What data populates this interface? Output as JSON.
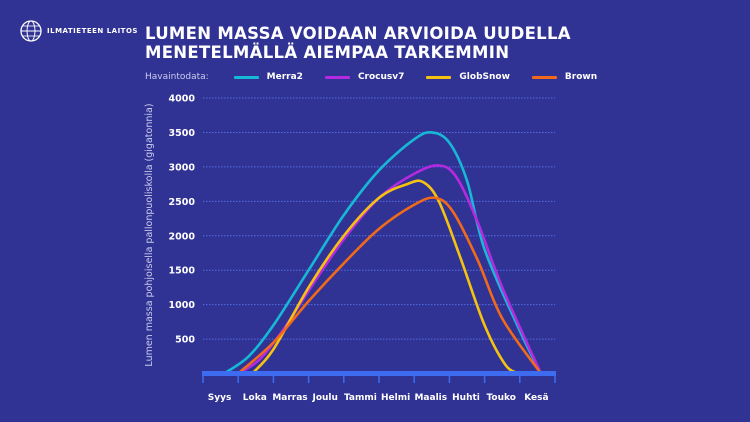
{
  "logo": {
    "text": "ILMATIETEEN LAITOS"
  },
  "title": "LUMEN MASSA VOIDAAN ARVIOIDA UUDELLA MENETELMÄLLÄ AIEMPAA TARKEMMIN",
  "chart_data": {
    "type": "line",
    "title": "LUMEN MASSA VOIDAAN ARVIOIDA UUDELLA MENETELMÄLLÄ AIEMPAA TARKEMMIN",
    "legend_title": "Havaintodata:",
    "legend_placement": "top",
    "xlabel": "",
    "ylabel": "Lumen massa pohjoisella pallonpuoliskolla (gigatonnia)",
    "categories": [
      "Syys",
      "Loka",
      "Marras",
      "Joulu",
      "Tammi",
      "Helmi",
      "Maalis",
      "Huhti",
      "Touko",
      "Kesä"
    ],
    "ylim": [
      0,
      4000
    ],
    "yticks": [
      500,
      1000,
      1500,
      2000,
      2500,
      3000,
      3500,
      4000
    ],
    "grid": true,
    "x_units": "months since start of September",
    "series": [
      {
        "name": "Merra2",
        "color": "#17b8d6",
        "points": [
          [
            0.6,
            0
          ],
          [
            1.3,
            250
          ],
          [
            2.0,
            700
          ],
          [
            3.0,
            1500
          ],
          [
            4.0,
            2300
          ],
          [
            5.0,
            2950
          ],
          [
            6.0,
            3400
          ],
          [
            6.5,
            3500
          ],
          [
            7.0,
            3350
          ],
          [
            7.5,
            2800
          ],
          [
            8.0,
            1800
          ],
          [
            9.0,
            620
          ],
          [
            9.6,
            0
          ]
        ]
      },
      {
        "name": "Crocusv7",
        "color": "#b52ae0",
        "points": [
          [
            1.0,
            0
          ],
          [
            1.6,
            200
          ],
          [
            2.3,
            650
          ],
          [
            3.0,
            1200
          ],
          [
            4.0,
            1950
          ],
          [
            5.0,
            2550
          ],
          [
            6.0,
            2900
          ],
          [
            6.7,
            3020
          ],
          [
            7.2,
            2850
          ],
          [
            7.8,
            2200
          ],
          [
            8.5,
            1250
          ],
          [
            9.6,
            0
          ]
        ]
      },
      {
        "name": "GlobSnow",
        "color": "#f5c211",
        "points": [
          [
            1.4,
            0
          ],
          [
            2.0,
            350
          ],
          [
            3.0,
            1250
          ],
          [
            4.0,
            2000
          ],
          [
            5.0,
            2550
          ],
          [
            5.8,
            2750
          ],
          [
            6.25,
            2780
          ],
          [
            6.7,
            2500
          ],
          [
            7.3,
            1700
          ],
          [
            8.0,
            700
          ],
          [
            8.6,
            120
          ],
          [
            9.0,
            0
          ]
        ]
      },
      {
        "name": "Brown",
        "color": "#f06a1a",
        "points": [
          [
            1.0,
            0
          ],
          [
            2.0,
            450
          ],
          [
            3.0,
            1050
          ],
          [
            4.0,
            1600
          ],
          [
            5.0,
            2100
          ],
          [
            6.0,
            2450
          ],
          [
            6.6,
            2550
          ],
          [
            7.1,
            2350
          ],
          [
            7.8,
            1650
          ],
          [
            8.5,
            800
          ],
          [
            9.6,
            0
          ]
        ]
      }
    ]
  }
}
